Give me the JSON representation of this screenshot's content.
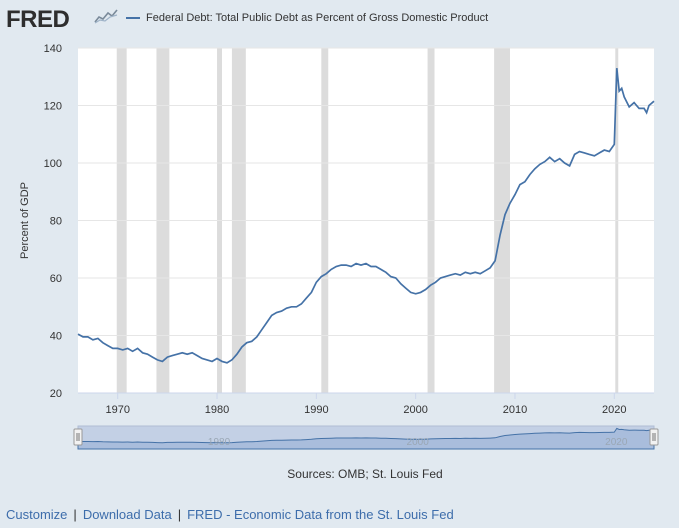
{
  "header": {
    "logo_text": "FRED",
    "legend_label": "Federal Debt: Total Public Debt as Percent of Gross Domestic Product",
    "series_color": "#4572a7"
  },
  "sources_text": "Sources: OMB; St. Louis Fed",
  "footer": {
    "links": [
      "Customize",
      "Download Data",
      "FRED - Economic Data from the St. Louis Fed"
    ],
    "separator": "|"
  },
  "colors": {
    "background": "#e1e9f0",
    "plot_background": "#ffffff",
    "recession_shade": "#dcdcdc",
    "navigator_fill": "#c3d0e5",
    "link": "#3d6dab"
  },
  "chart_data": {
    "type": "line",
    "title": "",
    "xlabel": "",
    "ylabel": "Percent of GDP",
    "xlim": [
      1966.0,
      2024.0
    ],
    "ylim": [
      20,
      140
    ],
    "y_ticks": [
      20,
      40,
      60,
      80,
      100,
      120,
      140
    ],
    "x_ticks": [
      1970,
      1980,
      1990,
      2000,
      2010,
      2020
    ],
    "navigator_ticks": [
      1980,
      2000,
      2020
    ],
    "grid": true,
    "legend_position": "top",
    "recessions": [
      [
        1969.9,
        1970.9
      ],
      [
        1973.9,
        1975.2
      ],
      [
        1980.0,
        1980.5
      ],
      [
        1981.5,
        1982.9
      ],
      [
        1990.5,
        1991.2
      ],
      [
        2001.2,
        2001.9
      ],
      [
        2007.9,
        2009.5
      ],
      [
        2020.1,
        2020.4
      ]
    ],
    "series": [
      {
        "name": "Federal Debt: Total Public Debt as Percent of Gross Domestic Product",
        "x": [
          1966.0,
          1966.5,
          1967.0,
          1967.5,
          1968.0,
          1968.5,
          1969.0,
          1969.5,
          1970.0,
          1970.5,
          1971.0,
          1971.5,
          1972.0,
          1972.5,
          1973.0,
          1973.5,
          1974.0,
          1974.5,
          1975.0,
          1975.5,
          1976.0,
          1976.5,
          1977.0,
          1977.5,
          1978.0,
          1978.5,
          1979.0,
          1979.5,
          1980.0,
          1980.5,
          1981.0,
          1981.5,
          1982.0,
          1982.5,
          1983.0,
          1983.5,
          1984.0,
          1984.5,
          1985.0,
          1985.5,
          1986.0,
          1986.5,
          1987.0,
          1987.5,
          1988.0,
          1988.5,
          1989.0,
          1989.5,
          1990.0,
          1990.5,
          1991.0,
          1991.5,
          1992.0,
          1992.5,
          1993.0,
          1993.5,
          1994.0,
          1994.5,
          1995.0,
          1995.5,
          1996.0,
          1996.5,
          1997.0,
          1997.5,
          1998.0,
          1998.5,
          1999.0,
          1999.5,
          2000.0,
          2000.5,
          2001.0,
          2001.5,
          2002.0,
          2002.5,
          2003.0,
          2003.5,
          2004.0,
          2004.5,
          2005.0,
          2005.5,
          2006.0,
          2006.5,
          2007.0,
          2007.5,
          2008.0,
          2008.5,
          2009.0,
          2009.5,
          2010.0,
          2010.5,
          2011.0,
          2011.5,
          2012.0,
          2012.5,
          2013.0,
          2013.5,
          2014.0,
          2014.5,
          2015.0,
          2015.5,
          2016.0,
          2016.5,
          2017.0,
          2017.5,
          2018.0,
          2018.5,
          2019.0,
          2019.5,
          2020.0,
          2020.25,
          2020.5,
          2020.75,
          2021.0,
          2021.5,
          2022.0,
          2022.5,
          2023.0,
          2023.25,
          2023.5,
          2024.0
        ],
        "values": [
          40.5,
          39.5,
          39.5,
          38.5,
          39.0,
          37.5,
          36.5,
          35.5,
          35.5,
          35.0,
          35.5,
          34.5,
          35.5,
          34.0,
          33.5,
          32.5,
          31.5,
          31.0,
          32.5,
          33.0,
          33.5,
          34.0,
          33.5,
          34.0,
          33.0,
          32.0,
          31.5,
          31.0,
          32.0,
          31.0,
          30.5,
          31.5,
          33.5,
          36.0,
          37.5,
          38.0,
          39.5,
          42.0,
          44.5,
          47.0,
          48.0,
          48.5,
          49.5,
          50.0,
          50.0,
          51.0,
          53.0,
          55.0,
          58.5,
          60.5,
          61.5,
          63.0,
          64.0,
          64.5,
          64.5,
          64.0,
          65.0,
          64.5,
          65.0,
          64.0,
          64.0,
          63.0,
          62.0,
          60.5,
          60.0,
          58.0,
          56.5,
          55.0,
          54.5,
          55.0,
          56.0,
          57.5,
          58.5,
          60.0,
          60.5,
          61.0,
          61.5,
          61.0,
          62.0,
          61.5,
          62.0,
          61.5,
          62.5,
          63.5,
          66.0,
          75.0,
          82.0,
          86.0,
          89.0,
          92.5,
          93.5,
          96.0,
          98.0,
          99.5,
          100.5,
          102.0,
          100.5,
          101.5,
          100.0,
          99.0,
          103.0,
          104.0,
          103.5,
          103.0,
          102.5,
          103.5,
          104.5,
          104.0,
          106.5,
          133.0,
          125.0,
          126.0,
          123.0,
          119.5,
          121.0,
          119.0,
          119.0,
          117.5,
          120.0,
          121.5
        ]
      }
    ]
  }
}
